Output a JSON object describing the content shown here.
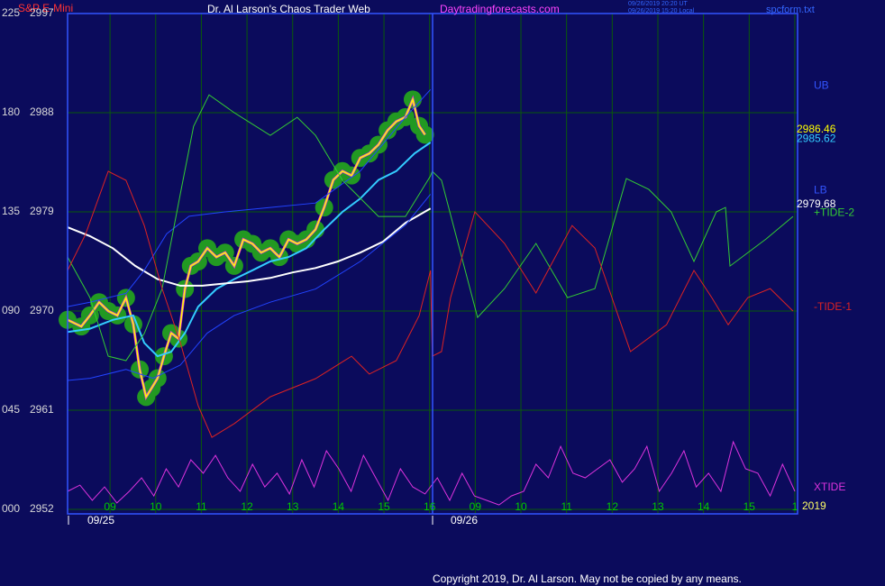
{
  "chart_data": {
    "type": "line",
    "symbol": "S&P E-Mini",
    "title": "Dr. Al Larson's Chaos Trader Web",
    "site": "Daytradingforecasts.com",
    "timestamps": [
      "09/26/2019 20:20 UT",
      "09/26/2019 15:20 Local"
    ],
    "file": "spcform.txt",
    "copyright": "Copyright 2019, Dr. Al Larson. May not be copied by any means.",
    "dates": [
      "09/25",
      "09/26"
    ],
    "year": "2019",
    "grid": true,
    "xlim": [
      0.07,
      16.06
    ],
    "xticks": [
      {
        "value": 1,
        "label": "09"
      },
      {
        "value": 2,
        "label": "10"
      },
      {
        "value": 3,
        "label": "11"
      },
      {
        "value": 4,
        "label": "12"
      },
      {
        "value": 5,
        "label": "13"
      },
      {
        "value": 6,
        "label": "14"
      },
      {
        "value": 7,
        "label": "15"
      },
      {
        "value": 8,
        "label": "16"
      },
      {
        "value": 9,
        "label": "09"
      },
      {
        "value": 10,
        "label": "10"
      },
      {
        "value": 11,
        "label": "11"
      },
      {
        "value": 12,
        "label": "12"
      },
      {
        "value": 13,
        "label": "13"
      },
      {
        "value": 14,
        "label": "14"
      },
      {
        "value": 15,
        "label": "15"
      },
      {
        "value": 16,
        "label": "1"
      }
    ],
    "ylim": [
      2952,
      2997
    ],
    "yticks": [
      2952,
      2961,
      2970,
      2979,
      2988,
      2997
    ],
    "y2lim": [
      0,
      225
    ],
    "y2ticks": [
      {
        "value": 0,
        "label": "000"
      },
      {
        "value": 45,
        "label": "045"
      },
      {
        "value": 90,
        "label": "090"
      },
      135,
      180,
      225
    ],
    "series": [
      {
        "color": "#ffff00",
        "marker_color": "#229922",
        "last_value": 2986.46,
        "x": [
          0.07,
          0.37,
          0.56,
          0.76,
          0.96,
          1.16,
          1.35,
          1.51,
          1.65,
          1.79,
          1.91,
          2.04,
          2.18,
          2.34,
          2.5,
          2.64,
          2.77,
          2.93,
          3.13,
          3.33,
          3.52,
          3.72,
          3.92,
          4.12,
          4.31,
          4.51,
          4.71,
          4.91,
          5.1,
          5.3,
          5.5,
          5.69,
          5.89,
          6.09,
          6.29,
          6.48,
          6.68,
          6.88,
          7.08,
          7.27,
          7.47,
          7.63,
          7.77,
          7.9
        ],
        "values": [
          2969.2,
          2968.6,
          2969.6,
          2970.8,
          2970.0,
          2969.6,
          2971.2,
          2968.8,
          2964.7,
          2962.2,
          2963.0,
          2963.9,
          2965.9,
          2968.0,
          2967.5,
          2972.0,
          2974.1,
          2974.5,
          2975.7,
          2974.9,
          2975.3,
          2974.1,
          2976.5,
          2976.1,
          2975.3,
          2975.7,
          2974.9,
          2976.5,
          2976.1,
          2976.5,
          2977.4,
          2979.4,
          2981.9,
          2982.7,
          2982.3,
          2983.9,
          2984.3,
          2985.1,
          2986.4,
          2987.2,
          2987.6,
          2989.2,
          2986.8,
          2986.0
        ]
      },
      {
        "color": "#33ccff",
        "last_value": 2985.62,
        "x": [
          0.07,
          0.56,
          1.06,
          1.51,
          1.75,
          2.04,
          2.34,
          2.64,
          2.93,
          3.33,
          3.72,
          4.12,
          4.51,
          4.91,
          5.3,
          5.69,
          6.09,
          6.48,
          6.88,
          7.27,
          7.67,
          8.02
        ],
        "values": [
          2968.1,
          2968.4,
          2969.2,
          2969.6,
          2967.1,
          2965.9,
          2966.3,
          2968.0,
          2970.4,
          2972.0,
          2972.9,
          2973.7,
          2974.5,
          2974.9,
          2975.7,
          2977.4,
          2979.0,
          2980.2,
          2981.9,
          2982.7,
          2984.3,
          2985.3
        ]
      },
      {
        "color": "#ffffff",
        "last_value": 2979.68,
        "x": [
          0.07,
          0.56,
          1.06,
          1.55,
          2.04,
          2.54,
          3.03,
          3.52,
          4.02,
          4.51,
          5.0,
          5.5,
          5.99,
          6.48,
          6.98,
          7.47,
          8.02
        ],
        "values": [
          2977.6,
          2976.8,
          2975.7,
          2974.1,
          2972.9,
          2972.3,
          2972.3,
          2972.5,
          2972.7,
          2973.0,
          2973.5,
          2973.9,
          2974.5,
          2975.3,
          2976.3,
          2978.0,
          2979.3
        ]
      },
      {
        "name": "UB",
        "color": "#2244ff",
        "x": [
          0.07,
          0.56,
          1.35,
          1.75,
          2.24,
          2.73,
          3.52,
          4.51,
          5.5,
          6.48,
          7.47,
          8.02
        ],
        "values": [
          2970.4,
          2970.8,
          2971.6,
          2973.7,
          2977.0,
          2978.6,
          2979.0,
          2979.4,
          2979.8,
          2982.7,
          2987.6,
          2990.1
        ]
      },
      {
        "name": "LB",
        "color": "#2244ff",
        "x": [
          0.07,
          0.56,
          1.35,
          1.94,
          2.54,
          3.13,
          3.72,
          4.51,
          5.5,
          6.48,
          7.47,
          8.02
        ],
        "values": [
          2963.7,
          2963.9,
          2964.7,
          2963.9,
          2965.1,
          2968.0,
          2969.6,
          2970.8,
          2972.0,
          2974.5,
          2977.8,
          2980.6
        ]
      },
      {
        "name": "+TIDE-2",
        "color": "#33cc33",
        "axis": "y2",
        "x": [
          0.07,
          0.56,
          0.96,
          1.35,
          1.75,
          2.14,
          2.54,
          2.83,
          3.17,
          3.72,
          4.51,
          5.1,
          5.5,
          6.09,
          6.88,
          7.47,
          8.02,
          8.06,
          8.26,
          9.05,
          9.64,
          10.33,
          11.02,
          11.62,
          12.31,
          12.8,
          13.29,
          13.79,
          14.28,
          14.48,
          14.58,
          15.37,
          15.96
        ],
        "values": [
          114.5,
          96.1,
          69.5,
          67.5,
          79.8,
          100.2,
          143.2,
          173.8,
          188.1,
          180.0,
          169.7,
          177.9,
          169.7,
          149.3,
          132.9,
          132.9,
          151.3,
          153.4,
          149.3,
          87.1,
          100.2,
          120.7,
          96.1,
          100.2,
          150.1,
          145.2,
          135.0,
          112.5,
          135.0,
          137.0,
          110.4,
          122.7,
          132.9
        ]
      },
      {
        "name": "-TIDE-1",
        "color": "#dd2222",
        "axis": "y2",
        "x": [
          0.07,
          0.46,
          0.96,
          1.35,
          1.75,
          2.14,
          2.54,
          2.93,
          3.23,
          3.72,
          4.51,
          5.5,
          6.29,
          6.68,
          7.27,
          7.77,
          8.02,
          8.06,
          8.26,
          8.46,
          8.99,
          9.64,
          10.33,
          11.12,
          11.62,
          12.4,
          13.19,
          13.79,
          14.18,
          14.54,
          14.97,
          15.46,
          15.96
        ],
        "values": [
          108.4,
          124.7,
          153.4,
          149.3,
          128.8,
          100.2,
          75.7,
          47.0,
          32.7,
          38.9,
          51.1,
          59.3,
          69.5,
          61.4,
          67.5,
          87.9,
          108.4,
          69.5,
          71.6,
          96.1,
          135.0,
          120.7,
          98.2,
          128.8,
          118.6,
          71.6,
          83.8,
          108.4,
          96.1,
          83.8,
          96.1,
          100.2,
          90.0
        ]
      },
      {
        "name": "XTIDE",
        "color": "#dd33dd",
        "axis": "y2",
        "x": [
          0.07,
          0.34,
          0.61,
          0.88,
          1.15,
          1.42,
          1.69,
          1.96,
          2.23,
          2.5,
          2.77,
          3.04,
          3.31,
          3.58,
          3.85,
          4.12,
          4.39,
          4.66,
          4.93,
          5.2,
          5.47,
          5.74,
          6.01,
          6.28,
          6.55,
          6.82,
          7.09,
          7.36,
          7.63,
          7.9,
          8.17,
          8.44,
          8.71,
          8.98,
          9.25,
          9.52,
          9.79,
          10.06,
          10.33,
          10.6,
          10.87,
          11.14,
          11.41,
          11.68,
          11.95,
          12.22,
          12.49,
          12.76,
          13.03,
          13.3,
          13.57,
          13.84,
          14.11,
          14.38,
          14.65,
          14.92,
          15.19,
          15.46,
          15.73,
          16.0
        ],
        "values": [
          8.2,
          11.0,
          4.1,
          10.2,
          2.9,
          8.2,
          14.3,
          6.1,
          18.4,
          10.2,
          22.5,
          16.4,
          24.5,
          14.3,
          8.2,
          20.5,
          10.2,
          16.4,
          7.0,
          22.5,
          10.2,
          26.6,
          18.4,
          8.2,
          24.5,
          14.3,
          4.1,
          18.4,
          10.2,
          7.0,
          14.3,
          4.1,
          16.4,
          6.1,
          4.1,
          2.0,
          6.1,
          8.2,
          20.5,
          14.3,
          28.6,
          16.4,
          14.3,
          18.4,
          22.5,
          12.3,
          18.4,
          28.6,
          8.2,
          16.4,
          26.6,
          10.2,
          16.4,
          8.2,
          30.7,
          18.4,
          16.4,
          6.1,
          20.5,
          8.2
        ]
      }
    ]
  }
}
